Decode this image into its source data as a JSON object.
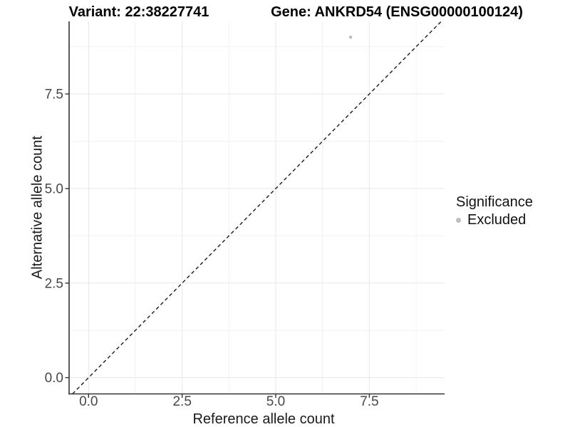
{
  "header": {
    "variant_title": "Variant: 22:38227741",
    "gene_title": "Gene: ANKRD54 (ENSG00000100124)"
  },
  "chart_data": {
    "type": "scatter",
    "title": "Variant: 22:38227741  /  Gene: ANKRD54 (ENSG00000100124)",
    "xlabel": "Reference allele count",
    "ylabel": "Alternative allele count",
    "xlim": [
      -0.52,
      9.51
    ],
    "ylim": [
      -0.43,
      9.42
    ],
    "x_ticks": {
      "values": [
        0,
        2.5,
        5,
        7.5
      ],
      "labels": [
        "0.0",
        "2.5",
        "5.0",
        "7.5"
      ]
    },
    "y_ticks": {
      "values": [
        0,
        2.5,
        5,
        7.5
      ],
      "labels": [
        "0.0",
        "2.5",
        "5.0",
        "7.5"
      ]
    },
    "x_minor_ticks": [
      1.25,
      3.75,
      6.25,
      8.75
    ],
    "y_minor_ticks": [
      1.25,
      3.75,
      6.25,
      8.75
    ],
    "grid": "major+minor",
    "legend_position": "right",
    "reference_line": {
      "kind": "identity-diagonal",
      "style": "dashed",
      "color": "#1a1a1a"
    },
    "series": [
      {
        "name": "Excluded",
        "color": "#bebebe",
        "points": [
          {
            "x": 7,
            "y": 9
          }
        ]
      }
    ]
  },
  "legend": {
    "title": "Significance",
    "items": [
      {
        "label": "Excluded",
        "color": "#bebebe",
        "marker": "circle"
      }
    ]
  },
  "style_colors": {
    "grid_major": "#e7e7e7",
    "grid_minor": "#f2f2f2",
    "axis_line": "#333333",
    "tick_text": "#474747",
    "title_text": "#000000"
  }
}
